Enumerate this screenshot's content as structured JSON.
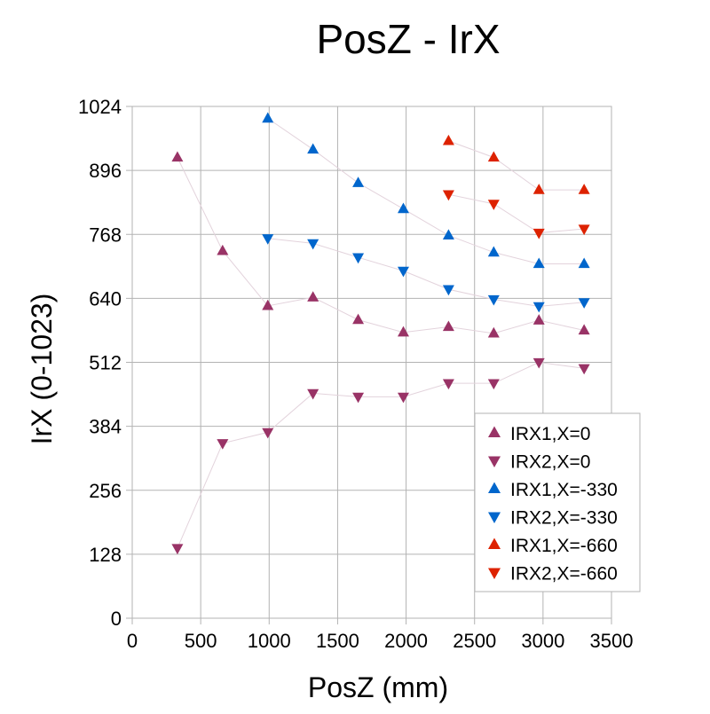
{
  "chart_data": {
    "type": "scatter",
    "title": "PosZ - IrX",
    "xlabel": "PosZ (mm)",
    "ylabel": "IrX (0-1023)",
    "xlim": [
      0,
      3500
    ],
    "ylim": [
      0,
      1024
    ],
    "x_ticks": [
      0,
      500,
      1000,
      1500,
      2000,
      2500,
      3000,
      3500
    ],
    "y_ticks": [
      0,
      128,
      256,
      384,
      512,
      640,
      768,
      896,
      1024
    ],
    "grid": true,
    "legend_position": "bottom-right",
    "series": [
      {
        "name": "IRX1,X=0",
        "color": "#993366",
        "marker": "triangle-up",
        "points": [
          [
            330,
            922
          ],
          [
            660,
            735
          ],
          [
            990,
            625
          ],
          [
            1320,
            642
          ],
          [
            1650,
            597
          ],
          [
            1980,
            572
          ],
          [
            2310,
            583
          ],
          [
            2640,
            570
          ],
          [
            2970,
            596
          ],
          [
            3300,
            576
          ]
        ]
      },
      {
        "name": "IRX2,X=0",
        "color": "#993366",
        "marker": "triangle-down",
        "points": [
          [
            330,
            140
          ],
          [
            660,
            350
          ],
          [
            990,
            372
          ],
          [
            1320,
            450
          ],
          [
            1650,
            443
          ],
          [
            1980,
            443
          ],
          [
            2310,
            470
          ],
          [
            2640,
            470
          ],
          [
            2970,
            512
          ],
          [
            3300,
            500
          ]
        ]
      },
      {
        "name": "IRX1,X=-330",
        "color": "#0066cc",
        "marker": "triangle-up",
        "points": [
          [
            990,
            1000
          ],
          [
            1320,
            938
          ],
          [
            1650,
            871
          ],
          [
            1980,
            819
          ],
          [
            2310,
            766
          ],
          [
            2640,
            732
          ],
          [
            2970,
            709
          ],
          [
            3300,
            709
          ]
        ]
      },
      {
        "name": "IRX2,X=-330",
        "color": "#0066cc",
        "marker": "triangle-down",
        "points": [
          [
            990,
            760
          ],
          [
            1320,
            750
          ],
          [
            1650,
            722
          ],
          [
            1980,
            695
          ],
          [
            2310,
            658
          ],
          [
            2640,
            638
          ],
          [
            2970,
            624
          ],
          [
            3300,
            632
          ]
        ]
      },
      {
        "name": "IRX1,X=-660",
        "color": "#dd2200",
        "marker": "triangle-up",
        "points": [
          [
            2310,
            955
          ],
          [
            2640,
            922
          ],
          [
            2970,
            857
          ],
          [
            3300,
            857
          ]
        ]
      },
      {
        "name": "IRX2,X=-660",
        "color": "#dd2200",
        "marker": "triangle-down",
        "points": [
          [
            2310,
            848
          ],
          [
            2640,
            829
          ],
          [
            2970,
            771
          ],
          [
            3300,
            779
          ]
        ]
      }
    ]
  }
}
